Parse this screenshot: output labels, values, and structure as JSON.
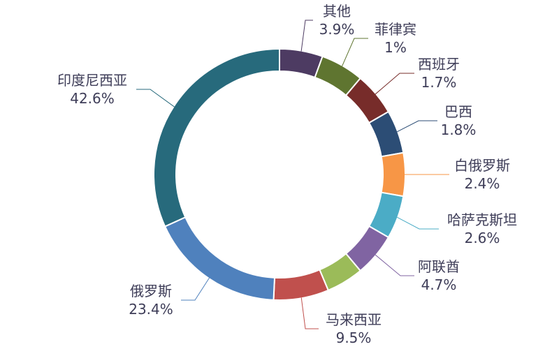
{
  "chart_data": {
    "type": "pie",
    "donut": true,
    "slices": [
      {
        "name": "其他",
        "value": 3.9,
        "value_label": "3.9%",
        "color": "#4D3B62"
      },
      {
        "name": "菲律宾",
        "value": 1,
        "value_label": "1%",
        "color": "#5F7530"
      },
      {
        "name": "西班牙",
        "value": 1.7,
        "value_label": "1.7%",
        "color": "#772C2A"
      },
      {
        "name": "巴西",
        "value": 1.8,
        "value_label": "1.8%",
        "color": "#2C4D75"
      },
      {
        "name": "白俄罗斯",
        "value": 2.4,
        "value_label": "2.4%",
        "color": "#F79646"
      },
      {
        "name": "哈萨克斯坦",
        "value": 2.6,
        "value_label": "2.6%",
        "color": "#4BACC6"
      },
      {
        "name": "阿联酋",
        "value": 4.7,
        "value_label": "4.7%",
        "color": "#8064A2"
      },
      {
        "name": "",
        "value": 6.4,
        "value_label": "",
        "color": "#9BBB59"
      },
      {
        "name": "马来西亚",
        "value": 9.5,
        "value_label": "9.5%",
        "color": "#C0504D"
      },
      {
        "name": "俄罗斯",
        "value": 23.4,
        "value_label": "23.4%",
        "color": "#4F81BD"
      },
      {
        "name": "印度尼西亚",
        "value": 42.6,
        "value_label": "42.6%",
        "color": "#276A7C"
      }
    ]
  }
}
